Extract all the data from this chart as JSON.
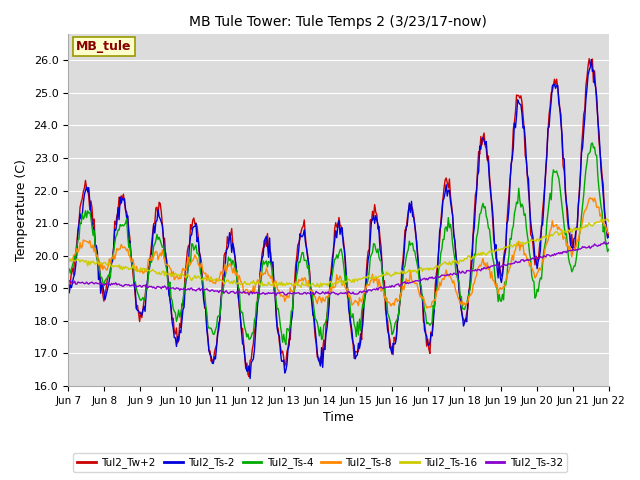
{
  "title": "MB Tule Tower: Tule Temps 2 (3/23/17-now)",
  "xlabel": "Time",
  "ylabel": "Temperature (C)",
  "ylim": [
    16.0,
    26.8
  ],
  "yticks": [
    16.0,
    17.0,
    18.0,
    19.0,
    20.0,
    21.0,
    22.0,
    23.0,
    24.0,
    25.0,
    26.0
  ],
  "bg_color": "#dcdcdc",
  "fig_color": "#ffffff",
  "legend_label": "MB_tule",
  "legend_box_color": "#ffffcc",
  "legend_box_edge": "#999900",
  "legend_text_color": "#880000",
  "series_colors": {
    "Tul2_Tw+2": "#cc0000",
    "Tul2_Ts-2": "#0000dd",
    "Tul2_Ts-4": "#00aa00",
    "Tul2_Ts-8": "#ff8800",
    "Tul2_Ts-16": "#cccc00",
    "Tul2_Ts-32": "#8800cc"
  },
  "xtick_labels": [
    "Jun 7",
    "Jun 8",
    "Jun 9",
    "Jun 10",
    "Jun 11",
    "Jun 12",
    "Jun 13",
    "Jun 14",
    "Jun 15",
    "Jun 16",
    "Jun 17",
    "Jun 18",
    "Jun 19",
    "Jun 20",
    "Jun 21",
    "Jun 22"
  ],
  "n_points": 500
}
